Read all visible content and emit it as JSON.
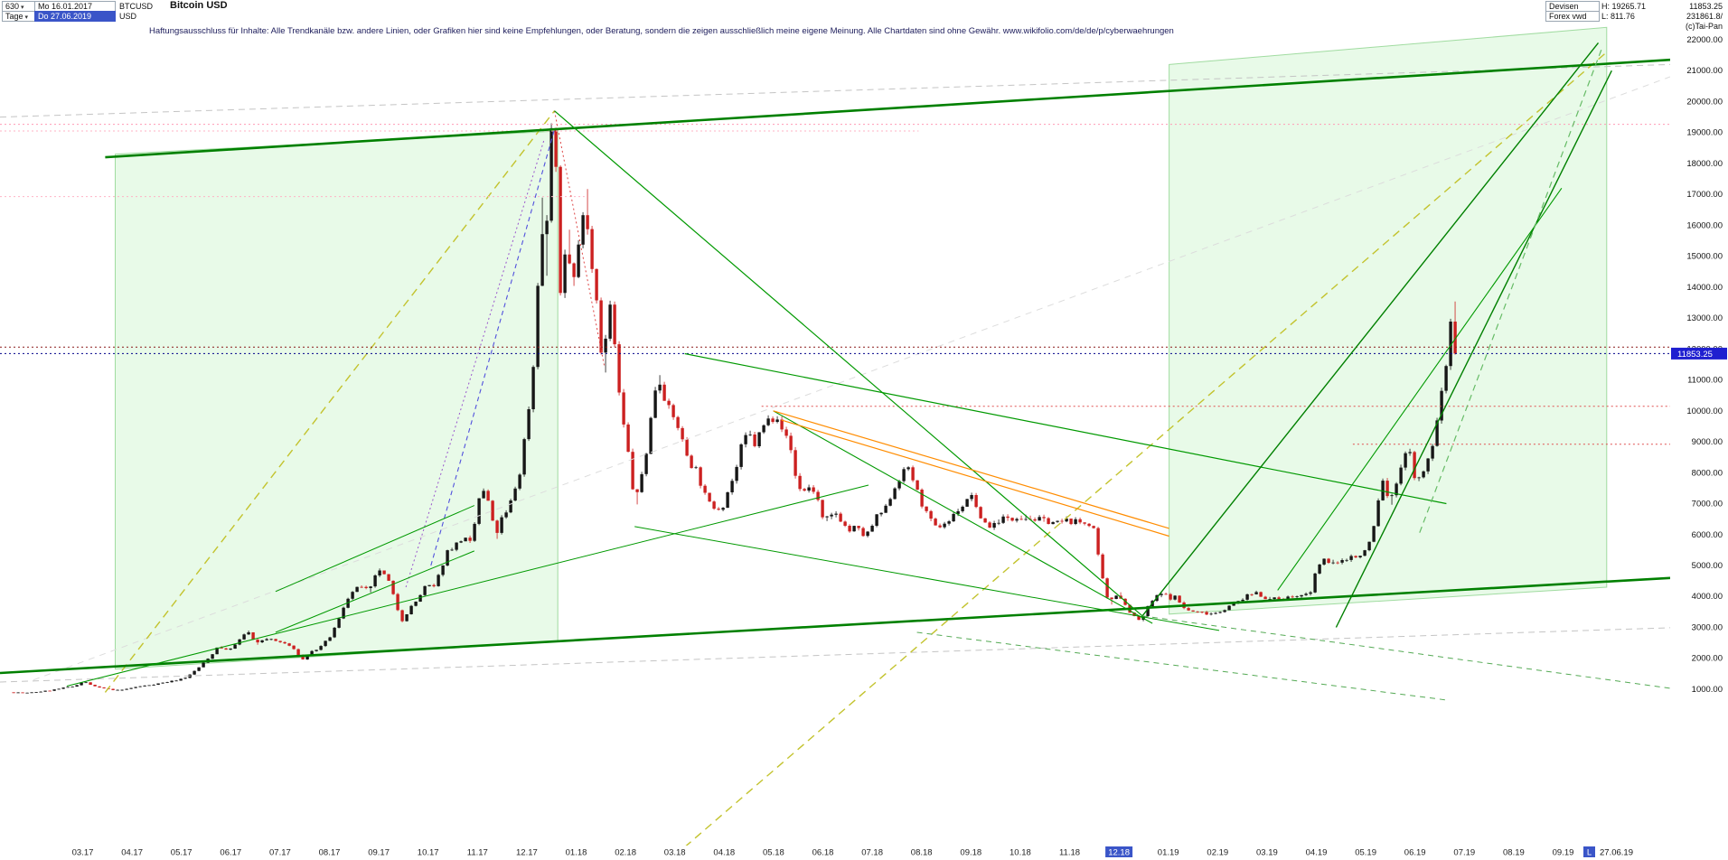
{
  "header": {
    "bars_count": "630",
    "dropdown_arrow": "▾",
    "timeframe": "Tage",
    "date_start": "Mo 16.01.2017",
    "date_end": "Do 27.06.2019",
    "symbol": "BTCUSD",
    "currency": "USD",
    "title": "Bitcoin USD",
    "market": "Devisen",
    "source": "Forex vwd",
    "high_label": "H: 19265.71",
    "low_label": "L: 811.76",
    "last_price": "11853.25",
    "volume": "231861.8/",
    "copyright": "(c)Tai-Pan"
  },
  "disclaimer": "Haftungsausschluss für Inhalte: Alle Trendkanäle bzw. andere Linien, oder Grafiken hier sind keine Empfehlungen, oder Beratung, sondern die zeigen ausschließlich meine eigene Meinung. Alle Chartdaten sind ohne Gewähr.   www.wikifolio.com/de/de/p/cyberwaehrungen",
  "chart_data": {
    "type": "candlestick",
    "symbol": "BTCUSD",
    "title": "Bitcoin USD",
    "timeframe": "Tage",
    "range_start": "Mo 16.01.2017",
    "range_end": "Do 27.06.2019",
    "period_high": 19265.71,
    "period_low": 811.76,
    "last_close": 11853.25,
    "y_axis": {
      "min": 1000,
      "max": 22000,
      "step": 1000
    },
    "x_ticks": [
      "03.17",
      "04.17",
      "05.17",
      "06.17",
      "07.17",
      "08.17",
      "09.17",
      "10.17",
      "11.17",
      "12.17",
      "01.18",
      "02.18",
      "03.18",
      "04.18",
      "05.18",
      "06.18",
      "07.18",
      "08.18",
      "09.18",
      "10.18",
      "11.18",
      "12.18",
      "01.19",
      "02.19",
      "03.19",
      "04.19",
      "05.19",
      "06.19",
      "07.19",
      "08.19",
      "09.19"
    ],
    "highlighted_x_tick": "12.18",
    "last_bar_marker": {
      "prefix": "L",
      "date": "27.06.19"
    },
    "price_badge": {
      "value": "11853.25",
      "color": "#1f1fd0"
    },
    "colors": {
      "up": "#161616",
      "down": "#cc2020",
      "axis_text": "#111111",
      "highlight_bg": "#3a55c8"
    },
    "candles_anchors_day_close": [
      [
        0,
        900
      ],
      [
        12,
        880
      ],
      [
        25,
        960
      ],
      [
        40,
        1100
      ],
      [
        46,
        1250
      ],
      [
        53,
        1080
      ],
      [
        60,
        1010
      ],
      [
        68,
        960
      ],
      [
        78,
        1070
      ],
      [
        88,
        1150
      ],
      [
        95,
        1210
      ],
      [
        103,
        1290
      ],
      [
        110,
        1400
      ],
      [
        118,
        1750
      ],
      [
        124,
        2050
      ],
      [
        129,
        2400
      ],
      [
        134,
        2250
      ],
      [
        140,
        2450
      ],
      [
        147,
        2900
      ],
      [
        152,
        2450
      ],
      [
        158,
        2650
      ],
      [
        165,
        2550
      ],
      [
        172,
        2450
      ],
      [
        178,
        2150
      ],
      [
        181,
        1950
      ],
      [
        186,
        2200
      ],
      [
        192,
        2350
      ],
      [
        198,
        2700
      ],
      [
        203,
        3200
      ],
      [
        208,
        3900
      ],
      [
        212,
        4150
      ],
      [
        217,
        4350
      ],
      [
        222,
        4150
      ],
      [
        228,
        4900
      ],
      [
        234,
        4500
      ],
      [
        239,
        3700
      ],
      [
        242,
        3200
      ],
      [
        247,
        3600
      ],
      [
        252,
        3900
      ],
      [
        257,
        4350
      ],
      [
        262,
        4300
      ],
      [
        266,
        4800
      ],
      [
        270,
        5450
      ],
      [
        275,
        5650
      ],
      [
        280,
        5900
      ],
      [
        285,
        5700
      ],
      [
        290,
        7200
      ],
      [
        294,
        7450
      ],
      [
        298,
        6450
      ],
      [
        300,
        5900
      ],
      [
        303,
        6450
      ],
      [
        307,
        6700
      ],
      [
        311,
        7300
      ],
      [
        315,
        8000
      ],
      [
        319,
        9500
      ],
      [
        323,
        11100
      ],
      [
        326,
        14000
      ],
      [
        328,
        16800
      ],
      [
        330,
        14300
      ],
      [
        332,
        16500
      ],
      [
        334,
        19000
      ],
      [
        335,
        19265
      ],
      [
        337,
        18000
      ],
      [
        339,
        15600
      ],
      [
        340,
        13800
      ],
      [
        342,
        14700
      ],
      [
        344,
        15800
      ],
      [
        347,
        13900
      ],
      [
        350,
        14800
      ],
      [
        353,
        16000
      ],
      [
        355,
        17100
      ],
      [
        358,
        15200
      ],
      [
        361,
        14200
      ],
      [
        364,
        13000
      ],
      [
        366,
        11300
      ],
      [
        369,
        12800
      ],
      [
        371,
        13500
      ],
      [
        374,
        11800
      ],
      [
        377,
        10200
      ],
      [
        380,
        9200
      ],
      [
        383,
        8300
      ],
      [
        386,
        6900
      ],
      [
        389,
        7700
      ],
      [
        392,
        8300
      ],
      [
        396,
        9800
      ],
      [
        400,
        11200
      ],
      [
        404,
        10500
      ],
      [
        408,
        9900
      ],
      [
        412,
        9600
      ],
      [
        416,
        8900
      ],
      [
        420,
        8300
      ],
      [
        424,
        8100
      ],
      [
        428,
        7400
      ],
      [
        432,
        7000
      ],
      [
        436,
        6850
      ],
      [
        440,
        6900
      ],
      [
        444,
        7500
      ],
      [
        448,
        8000
      ],
      [
        452,
        8900
      ],
      [
        456,
        9300
      ],
      [
        460,
        8900
      ],
      [
        464,
        9400
      ],
      [
        468,
        9700
      ],
      [
        474,
        9850
      ],
      [
        478,
        9300
      ],
      [
        482,
        8800
      ],
      [
        486,
        7600
      ],
      [
        490,
        7400
      ],
      [
        494,
        7550
      ],
      [
        498,
        7300
      ],
      [
        502,
        6450
      ],
      [
        506,
        6550
      ],
      [
        510,
        6700
      ],
      [
        514,
        6400
      ],
      [
        518,
        6100
      ],
      [
        522,
        6250
      ],
      [
        526,
        6050
      ],
      [
        528,
        5900
      ],
      [
        532,
        6250
      ],
      [
        536,
        6650
      ],
      [
        540,
        6750
      ],
      [
        545,
        7400
      ],
      [
        550,
        7900
      ],
      [
        555,
        8200
      ],
      [
        559,
        7550
      ],
      [
        563,
        7000
      ],
      [
        567,
        6550
      ],
      [
        572,
        6200
      ],
      [
        576,
        6350
      ],
      [
        580,
        6450
      ],
      [
        585,
        6800
      ],
      [
        590,
        7000
      ],
      [
        594,
        7350
      ],
      [
        597,
        6700
      ],
      [
        601,
        6450
      ],
      [
        605,
        6250
      ],
      [
        609,
        6400
      ],
      [
        613,
        6550
      ],
      [
        618,
        6450
      ],
      [
        622,
        6600
      ],
      [
        627,
        6550
      ],
      [
        632,
        6500
      ],
      [
        637,
        6480
      ],
      [
        642,
        6420
      ],
      [
        647,
        6380
      ],
      [
        652,
        6450
      ],
      [
        657,
        6420
      ],
      [
        662,
        6380
      ],
      [
        666,
        6350
      ],
      [
        669,
        6200
      ],
      [
        671,
        5600
      ],
      [
        673,
        4800
      ],
      [
        676,
        4300
      ],
      [
        678,
        3750
      ],
      [
        681,
        4000
      ],
      [
        684,
        4100
      ],
      [
        687,
        3850
      ],
      [
        690,
        3600
      ],
      [
        693,
        3400
      ],
      [
        696,
        3250
      ],
      [
        698,
        3200
      ],
      [
        701,
        3500
      ],
      [
        704,
        3800
      ],
      [
        708,
        4000
      ],
      [
        712,
        4100
      ],
      [
        716,
        3950
      ],
      [
        720,
        4000
      ],
      [
        723,
        3700
      ],
      [
        727,
        3550
      ],
      [
        731,
        3500
      ],
      [
        735,
        3480
      ],
      [
        739,
        3460
      ],
      [
        742,
        3450
      ],
      [
        746,
        3500
      ],
      [
        750,
        3600
      ],
      [
        755,
        3750
      ],
      [
        760,
        3900
      ],
      [
        765,
        4050
      ],
      [
        769,
        4150
      ],
      [
        773,
        4000
      ],
      [
        778,
        3900
      ],
      [
        783,
        3930
      ],
      [
        788,
        3960
      ],
      [
        793,
        4000
      ],
      [
        798,
        4030
      ],
      [
        801,
        4050
      ],
      [
        804,
        4150
      ],
      [
        806,
        4900
      ],
      [
        809,
        5050
      ],
      [
        812,
        5200
      ],
      [
        816,
        5100
      ],
      [
        820,
        5050
      ],
      [
        824,
        5200
      ],
      [
        828,
        5300
      ],
      [
        832,
        5250
      ],
      [
        835,
        5350
      ],
      [
        839,
        5750
      ],
      [
        842,
        6300
      ],
      [
        845,
        7200
      ],
      [
        848,
        7900
      ],
      [
        850,
        7300
      ],
      [
        852,
        7000
      ],
      [
        855,
        7600
      ],
      [
        857,
        7900
      ],
      [
        859,
        8300
      ],
      [
        861,
        8700
      ],
      [
        864,
        8600
      ],
      [
        866,
        8100
      ],
      [
        868,
        7700
      ],
      [
        870,
        7800
      ],
      [
        872,
        7900
      ],
      [
        874,
        8200
      ],
      [
        876,
        8600
      ],
      [
        878,
        8900
      ],
      [
        880,
        9300
      ],
      [
        882,
        10100
      ],
      [
        884,
        10800
      ],
      [
        886,
        11300
      ],
      [
        887,
        11800
      ],
      [
        888,
        12300
      ],
      [
        889,
        12900
      ],
      [
        890,
        13600
      ],
      [
        891,
        12400
      ],
      [
        892,
        11853.25
      ]
    ],
    "overlays": {
      "regions": [
        {
          "name": "channel-zone-left",
          "points": [
            [
              0.069,
              18300
            ],
            [
              0.334,
              19050
            ],
            [
              0.334,
              2550
            ],
            [
              0.069,
              1650
            ]
          ],
          "fill": "rgba(150,230,150,0.22)",
          "stroke": "rgba(60,180,60,0.45)"
        },
        {
          "name": "channel-zone-right",
          "points": [
            [
              0.7,
              21200
            ],
            [
              0.962,
              22400
            ],
            [
              0.962,
              4300
            ],
            [
              0.7,
              3430
            ]
          ],
          "fill": "rgba(150,230,150,0.22)",
          "stroke": "rgba(60,180,60,0.45)"
        }
      ],
      "lines": [
        {
          "x1": 0.0,
          "p1": 19500,
          "x2": 1.0,
          "p2": 21200,
          "color": "#c4c4c4",
          "w": 1,
          "dash": "7,5"
        },
        {
          "x1": 0.02,
          "p1": 1300,
          "x2": 1.0,
          "p2": 20800,
          "color": "#dcdcdc",
          "w": 1,
          "dash": "7,6"
        },
        {
          "x1": 0.0,
          "p1": 1234,
          "x2": 1.0,
          "p2": 2988,
          "color": "#c4c4c4",
          "w": 1,
          "dash": "7,5"
        },
        {
          "x1": 0.063,
          "p1": 900,
          "x2": 0.332,
          "p2": 19700,
          "color": "#c3c32e",
          "w": 1.4,
          "dash": "9,6"
        },
        {
          "x1": 0.41,
          "p1": -4100,
          "x2": 0.962,
          "p2": 21600,
          "color": "#c3c32e",
          "w": 1.4,
          "dash": "9,6"
        },
        {
          "x1": 0.0,
          "p1": 19265,
          "x2": 1.0,
          "p2": 19265,
          "color": "#ff9ab5",
          "w": 1,
          "dash": "2,3"
        },
        {
          "x1": 0.0,
          "p1": 19050,
          "x2": 0.55,
          "p2": 19050,
          "color": "#ffb3c6",
          "w": 1,
          "dash": "2,3"
        },
        {
          "x1": 0.0,
          "p1": 16930,
          "x2": 0.35,
          "p2": 16930,
          "color": "#ffb3c6",
          "w": 1,
          "dash": "2,3"
        },
        {
          "x1": 0.0,
          "p1": 12060,
          "x2": 1.0,
          "p2": 12060,
          "color": "#8b1a1a",
          "w": 1,
          "dash": "2,3"
        },
        {
          "x1": 0.0,
          "p1": 11853,
          "x2": 1.0,
          "p2": 11853,
          "color": "#00008b",
          "w": 1,
          "dash": "2,3"
        },
        {
          "x1": 0.456,
          "p1": 10150,
          "x2": 1.0,
          "p2": 10150,
          "color": "#e05050",
          "w": 1,
          "dash": "2,3"
        },
        {
          "x1": 0.81,
          "p1": 8920,
          "x2": 1.0,
          "p2": 8920,
          "color": "#e05050",
          "w": 1,
          "dash": "2,3"
        },
        {
          "x1": 0.258,
          "p1": 5000,
          "x2": 0.332,
          "p2": 19100,
          "color": "#5050dd",
          "w": 1.1,
          "dash": "5,4"
        },
        {
          "x1": 0.243,
          "p1": 4300,
          "x2": 0.326,
          "p2": 18800,
          "color": "#9955cc",
          "w": 1,
          "dash": "2,3"
        },
        {
          "x1": 0.332,
          "p1": 19700,
          "x2": 0.362,
          "p2": 11400,
          "color": "#dd4444",
          "w": 1,
          "dash": "2,3"
        },
        {
          "x1": 0.063,
          "p1": 18200,
          "x2": 1.0,
          "p2": 21350,
          "color": "#008000",
          "w": 2.6
        },
        {
          "x1": 0.0,
          "p1": 1526,
          "x2": 1.0,
          "p2": 4596,
          "color": "#008000",
          "w": 2.6
        },
        {
          "x1": 0.332,
          "p1": 19700,
          "x2": 0.684,
          "p2": 3370,
          "color": "#009900",
          "w": 1.2
        },
        {
          "x1": 0.41,
          "p1": 11850,
          "x2": 0.866,
          "p2": 7000,
          "color": "#009900",
          "w": 1.2
        },
        {
          "x1": 0.463,
          "p1": 10000,
          "x2": 0.69,
          "p2": 3130,
          "color": "#009900",
          "w": 1.1
        },
        {
          "x1": 0.38,
          "p1": 6260,
          "x2": 0.73,
          "p2": 2900,
          "color": "#009900",
          "w": 1
        },
        {
          "x1": 0.463,
          "p1": 10000,
          "x2": 0.7,
          "p2": 6200,
          "color": "#ff8c00",
          "w": 1.2
        },
        {
          "x1": 0.468,
          "p1": 9700,
          "x2": 0.7,
          "p2": 5950,
          "color": "#ff8c00",
          "w": 1.2
        },
        {
          "x1": 0.04,
          "p1": 1100,
          "x2": 0.52,
          "p2": 7600,
          "color": "#009900",
          "w": 1
        },
        {
          "x1": 0.165,
          "p1": 4160,
          "x2": 0.284,
          "p2": 6940,
          "color": "#009900",
          "w": 1
        },
        {
          "x1": 0.165,
          "p1": 2840,
          "x2": 0.284,
          "p2": 5470,
          "color": "#009900",
          "w": 1
        },
        {
          "x1": 0.684,
          "p1": 3370,
          "x2": 0.957,
          "p2": 21900,
          "color": "#008000",
          "w": 1.4
        },
        {
          "x1": 0.8,
          "p1": 3000,
          "x2": 0.965,
          "p2": 21000,
          "color": "#008000",
          "w": 1.4
        },
        {
          "x1": 0.765,
          "p1": 4200,
          "x2": 0.935,
          "p2": 17200,
          "color": "#009900",
          "w": 1.1
        },
        {
          "x1": 0.85,
          "p1": 6060,
          "x2": 0.959,
          "p2": 21700,
          "color": "#66bb66",
          "w": 1.2,
          "dash": "7,5"
        },
        {
          "x1": 0.549,
          "p1": 2840,
          "x2": 0.866,
          "p2": 650,
          "color": "#55aa55",
          "w": 1,
          "dash": "6,5"
        },
        {
          "x1": 0.684,
          "p1": 3370,
          "x2": 1.0,
          "p2": 1030,
          "color": "#55aa55",
          "w": 1,
          "dash": "6,5"
        }
      ]
    }
  }
}
